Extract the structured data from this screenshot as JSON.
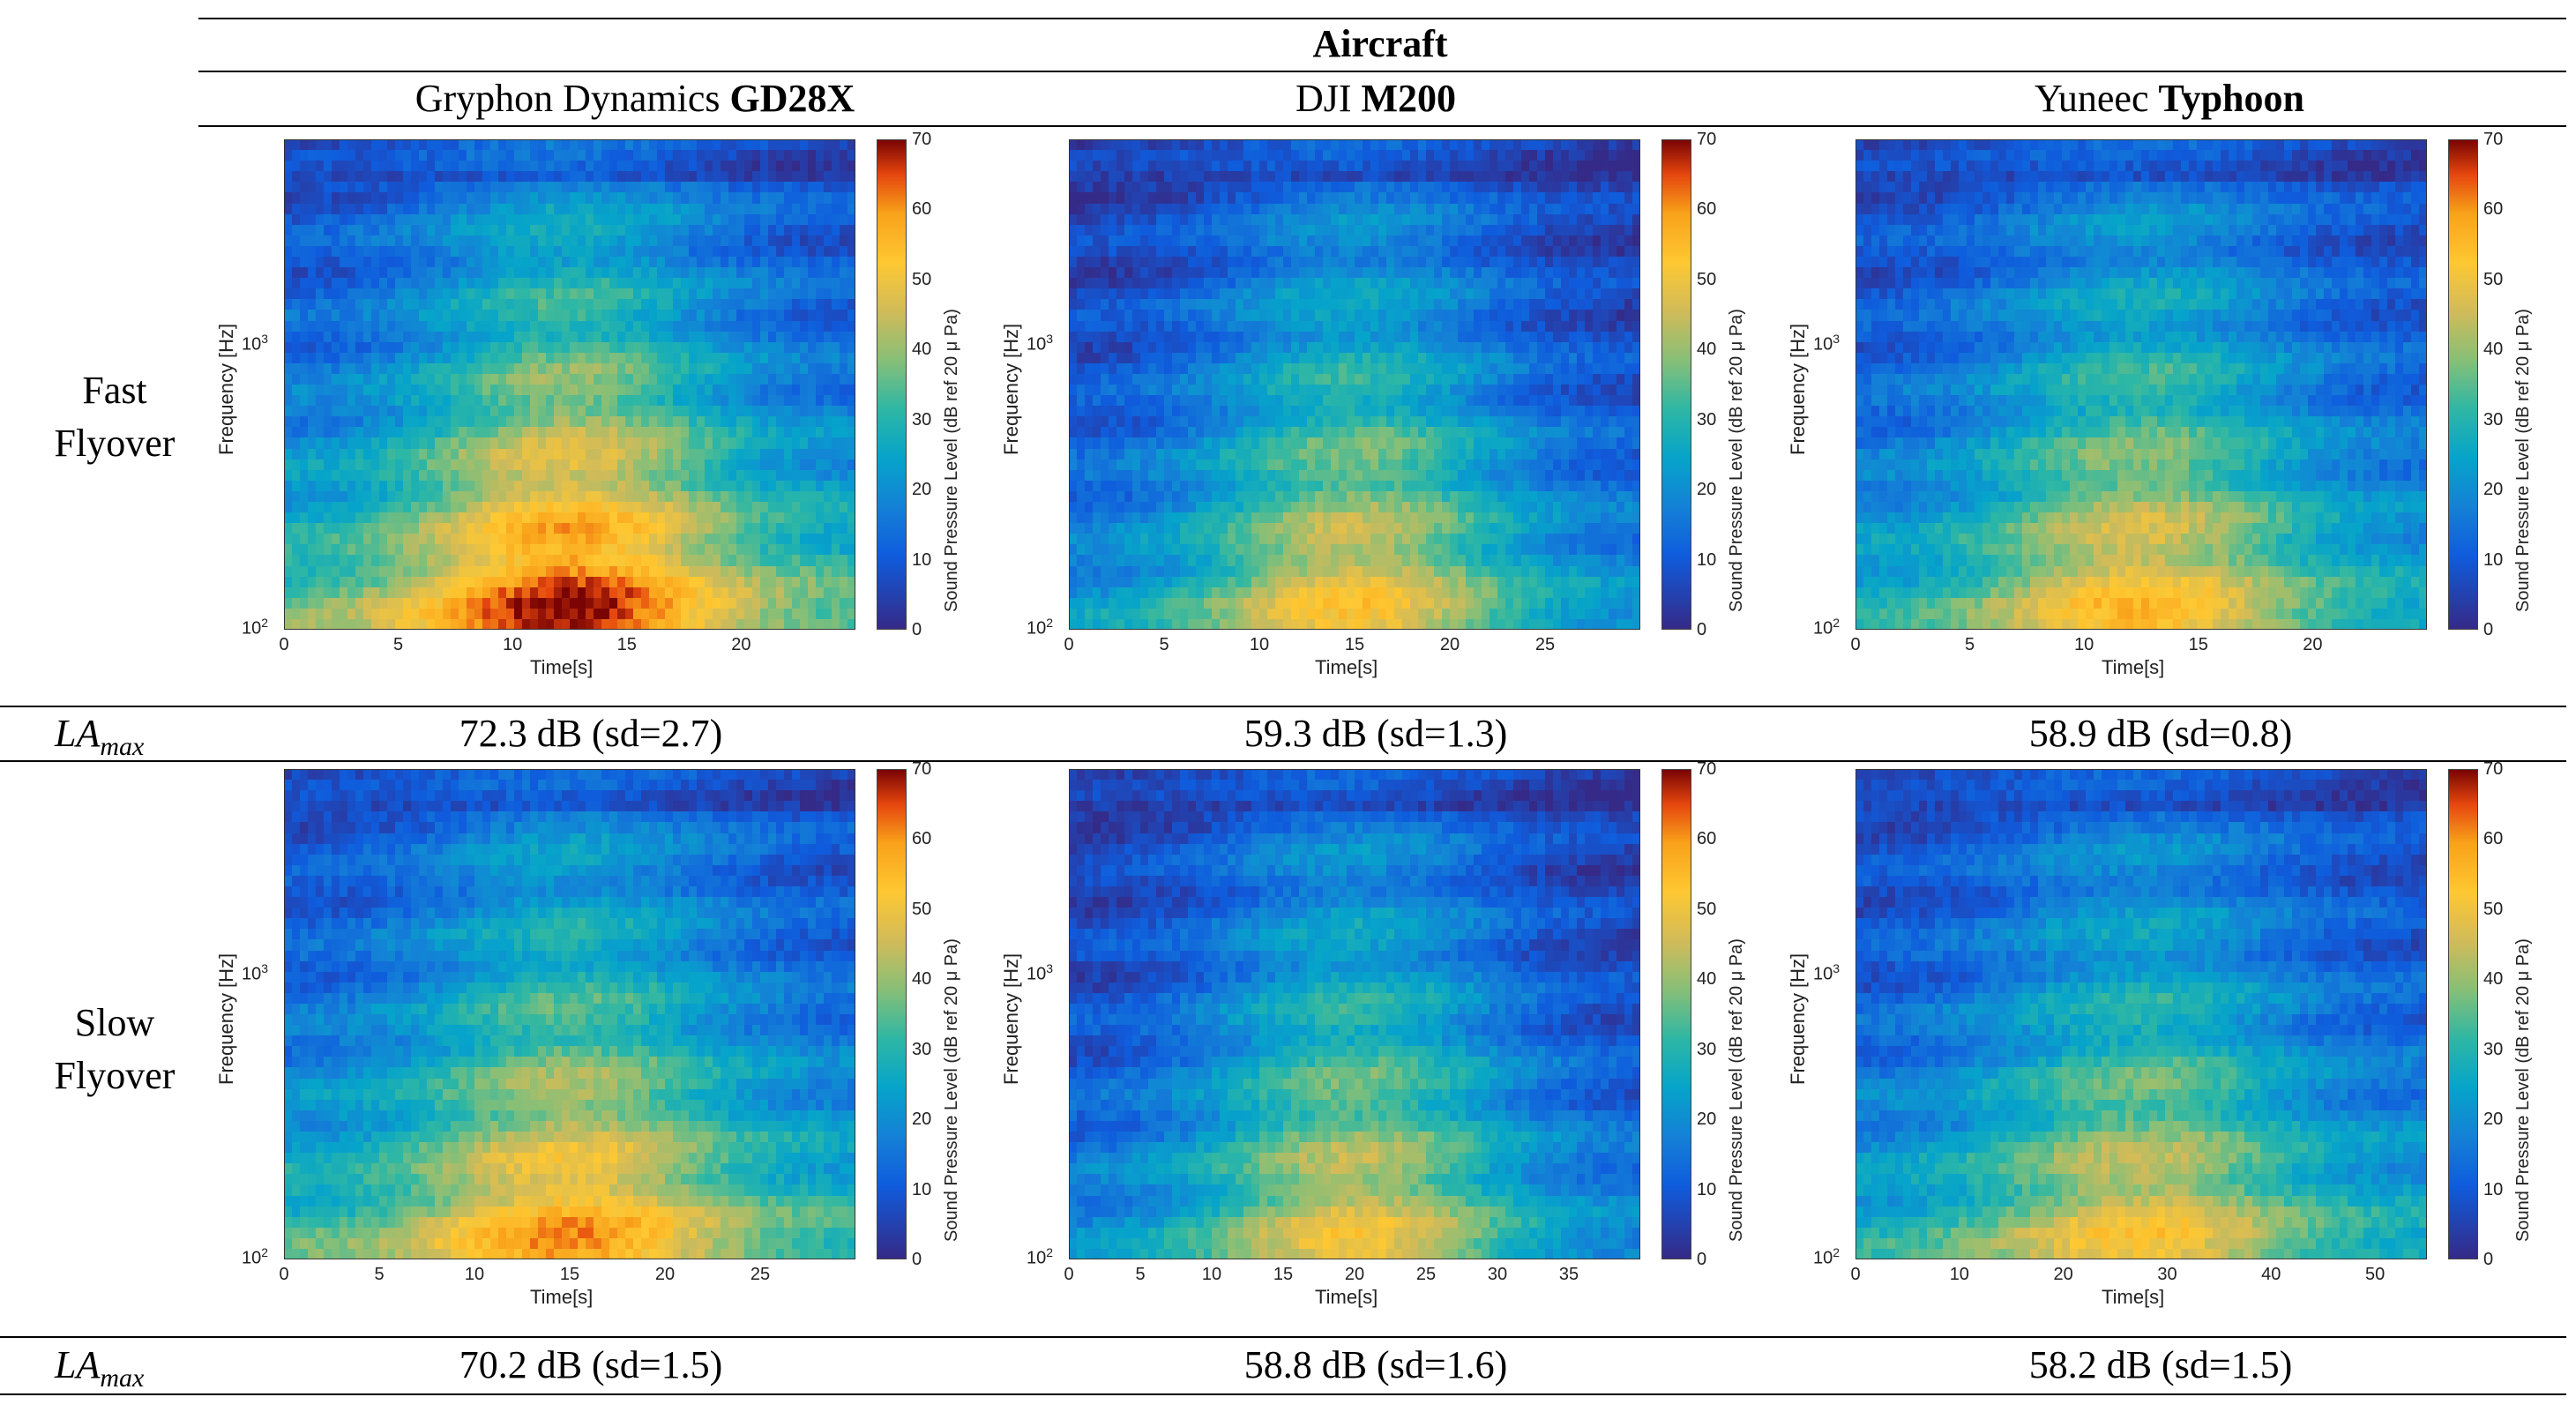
{
  "table": {
    "group_header": "Aircraft",
    "columns": [
      {
        "name_prefix": "Gryphon Dynamics ",
        "name_bold": "GD28X"
      },
      {
        "name_prefix": "DJI ",
        "name_bold": "M200"
      },
      {
        "name_prefix": "Yuneec ",
        "name_bold": "Typhoon"
      }
    ],
    "rows": [
      {
        "label_line1": "Fast",
        "label_line2": "Flyover"
      },
      {
        "label_line1": "Slow",
        "label_line2": "Flyover"
      }
    ],
    "metric_label_base": "LA",
    "metric_label_sub": "max",
    "measurements": [
      [
        "72.3 dB (sd=2.7)",
        "59.3 dB (sd=1.3)",
        "58.9 dB (sd=0.8)"
      ],
      [
        "70.2 dB (sd=1.5)",
        "58.8 dB (sd=1.6)",
        "58.2 dB (sd=1.5)"
      ]
    ]
  },
  "chart_data": [
    {
      "type": "heatmap",
      "title": "Gryphon Dynamics GD28X - Fast Flyover",
      "xlabel": "Time[s]",
      "ylabel": "Frequency [Hz]",
      "x_ticks": [
        0,
        5,
        10,
        15,
        20
      ],
      "xlim": [
        0,
        25
      ],
      "y_scale": "log",
      "y_tick_labels": [
        "10^2",
        "10^3"
      ],
      "colorbar_label": "Sound Pressure Level (dB ref 20 μ Pa)",
      "colorbar_ticks": [
        0,
        10,
        20,
        30,
        40,
        50,
        60,
        70
      ],
      "clim": [
        0,
        70
      ]
    },
    {
      "type": "heatmap",
      "title": "DJI M200 - Fast Flyover",
      "xlabel": "Time[s]",
      "ylabel": "Frequency [Hz]",
      "x_ticks": [
        0,
        5,
        10,
        15,
        20,
        25
      ],
      "xlim": [
        0,
        30
      ],
      "y_scale": "log",
      "y_tick_labels": [
        "10^2",
        "10^3"
      ],
      "colorbar_label": "Sound Pressure Level (dB ref 20 μ Pa)",
      "colorbar_ticks": [
        0,
        10,
        20,
        30,
        40,
        50,
        60,
        70
      ],
      "clim": [
        0,
        70
      ]
    },
    {
      "type": "heatmap",
      "title": "Yuneec Typhoon - Fast Flyover",
      "xlabel": "Time[s]",
      "ylabel": "Frequency [Hz]",
      "x_ticks": [
        0,
        5,
        10,
        15,
        20
      ],
      "xlim": [
        0,
        25
      ],
      "y_scale": "log",
      "y_tick_labels": [
        "10^2",
        "10^3"
      ],
      "colorbar_label": "Sound Pressure Level (dB ref 20 μ Pa)",
      "colorbar_ticks": [
        0,
        10,
        20,
        30,
        40,
        50,
        60,
        70
      ],
      "clim": [
        0,
        70
      ]
    },
    {
      "type": "heatmap",
      "title": "Gryphon Dynamics GD28X - Slow Flyover",
      "xlabel": "Time[s]",
      "ylabel": "Frequency [Hz]",
      "x_ticks": [
        0,
        5,
        10,
        15,
        20,
        25
      ],
      "xlim": [
        0,
        30
      ],
      "y_scale": "log",
      "y_tick_labels": [
        "10^2",
        "10^3"
      ],
      "colorbar_label": "Sound Pressure Level (dB ref 20 μ Pa)",
      "colorbar_ticks": [
        0,
        10,
        20,
        30,
        40,
        50,
        60,
        70
      ],
      "clim": [
        0,
        70
      ]
    },
    {
      "type": "heatmap",
      "title": "DJI M200 - Slow Flyover",
      "xlabel": "Time[s]",
      "ylabel": "Frequency [Hz]",
      "x_ticks": [
        0,
        5,
        10,
        15,
        20,
        25,
        30,
        35
      ],
      "xlim": [
        0,
        40
      ],
      "y_scale": "log",
      "y_tick_labels": [
        "10^2",
        "10^3"
      ],
      "colorbar_label": "Sound Pressure Level (dB ref 20 μ Pa)",
      "colorbar_ticks": [
        0,
        10,
        20,
        30,
        40,
        50,
        60,
        70
      ],
      "clim": [
        0,
        70
      ]
    },
    {
      "type": "heatmap",
      "title": "Yuneec Typhoon - Slow Flyover",
      "xlabel": "Time[s]",
      "ylabel": "Frequency [Hz]",
      "x_ticks": [
        0,
        10,
        20,
        30,
        40,
        50
      ],
      "xlim": [
        0,
        55
      ],
      "y_scale": "log",
      "y_tick_labels": [
        "10^2",
        "10^3"
      ],
      "colorbar_label": "Sound Pressure Level (dB ref 20 μ Pa)",
      "colorbar_ticks": [
        0,
        10,
        20,
        30,
        40,
        50,
        60,
        70
      ],
      "clim": [
        0,
        70
      ]
    }
  ]
}
